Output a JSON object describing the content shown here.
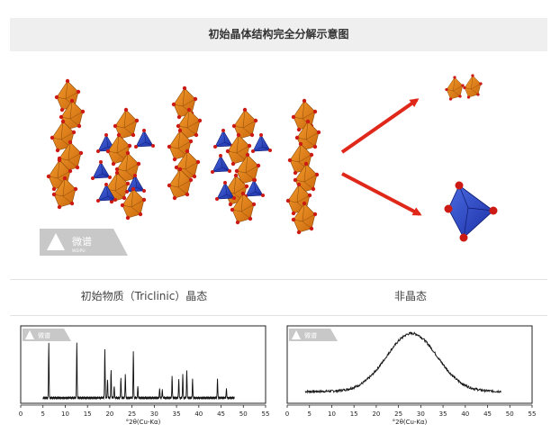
{
  "header": {
    "title": "初始晶体结构完全分解示意图"
  },
  "watermark": {
    "name": "微谱",
    "sub": "WEIPU"
  },
  "captions": {
    "left": "初始物质（Triclinic）晶态",
    "right": "非晶态"
  },
  "xrd_left": {
    "type": "line",
    "xlabel": "°2θ(Cu-Kα)",
    "xlim": [
      0,
      55
    ],
    "xticks": [
      "0",
      "5",
      "10",
      "15",
      "20",
      "25",
      "30",
      "35",
      "40",
      "45",
      "50",
      "55"
    ],
    "peaks": [
      {
        "x": 6.3,
        "h": 0.82
      },
      {
        "x": 12.6,
        "h": 0.82
      },
      {
        "x": 18.9,
        "h": 0.72
      },
      {
        "x": 19.5,
        "h": 0.28
      },
      {
        "x": 20.3,
        "h": 0.42
      },
      {
        "x": 21.0,
        "h": 0.18
      },
      {
        "x": 22.5,
        "h": 0.3
      },
      {
        "x": 23.5,
        "h": 0.35
      },
      {
        "x": 25.3,
        "h": 0.7
      },
      {
        "x": 26.3,
        "h": 0.18
      },
      {
        "x": 31.2,
        "h": 0.15
      },
      {
        "x": 31.8,
        "h": 0.12
      },
      {
        "x": 34.0,
        "h": 0.32
      },
      {
        "x": 35.5,
        "h": 0.28
      },
      {
        "x": 36.4,
        "h": 0.35
      },
      {
        "x": 37.3,
        "h": 0.42
      },
      {
        "x": 38.6,
        "h": 0.28
      },
      {
        "x": 44.2,
        "h": 0.28
      },
      {
        "x": 46.2,
        "h": 0.14
      }
    ]
  },
  "xrd_right": {
    "type": "line",
    "xlabel": "°2θ(Cu-Kα)",
    "xlim": [
      0,
      55
    ],
    "xticks": [
      "0",
      "5",
      "10",
      "15",
      "20",
      "25",
      "30",
      "35",
      "40",
      "45",
      "50",
      "55"
    ],
    "x_start": 4,
    "x_end": 48,
    "peak_center": 28,
    "peak_height": 0.85,
    "baseline": 0.12
  }
}
